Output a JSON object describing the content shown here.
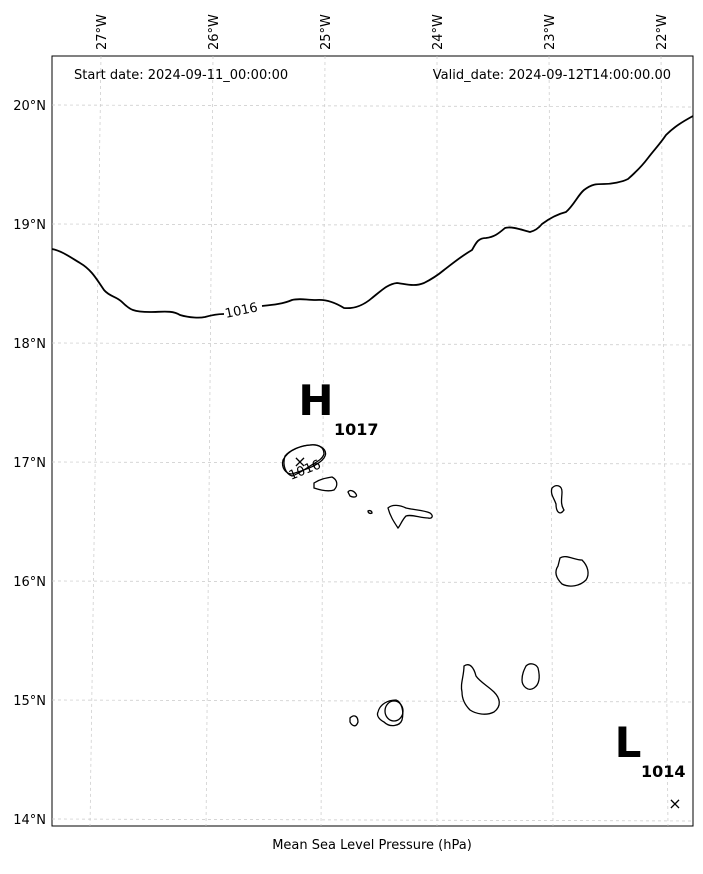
{
  "header": {
    "start_date": "Start date: 2024-09-11_00:00:00",
    "valid_date": "Valid_date: 2024-09-12T14:00:00.00"
  },
  "caption": "Mean Sea Level Pressure (hPa)",
  "lon_labels": [
    "27°W",
    "26°W",
    "25°W",
    "24°W",
    "23°W",
    "22°W"
  ],
  "lat_labels": [
    "20°N",
    "19°N",
    "18°N",
    "17°N",
    "16°N",
    "15°N",
    "14°N"
  ],
  "isobars": [
    {
      "label": "1016"
    },
    {
      "label": "1016"
    }
  ],
  "pressure_centers": [
    {
      "type": "H",
      "value": "1017",
      "mark": "×"
    },
    {
      "type": "L",
      "value": "1014",
      "mark": "×"
    }
  ]
}
